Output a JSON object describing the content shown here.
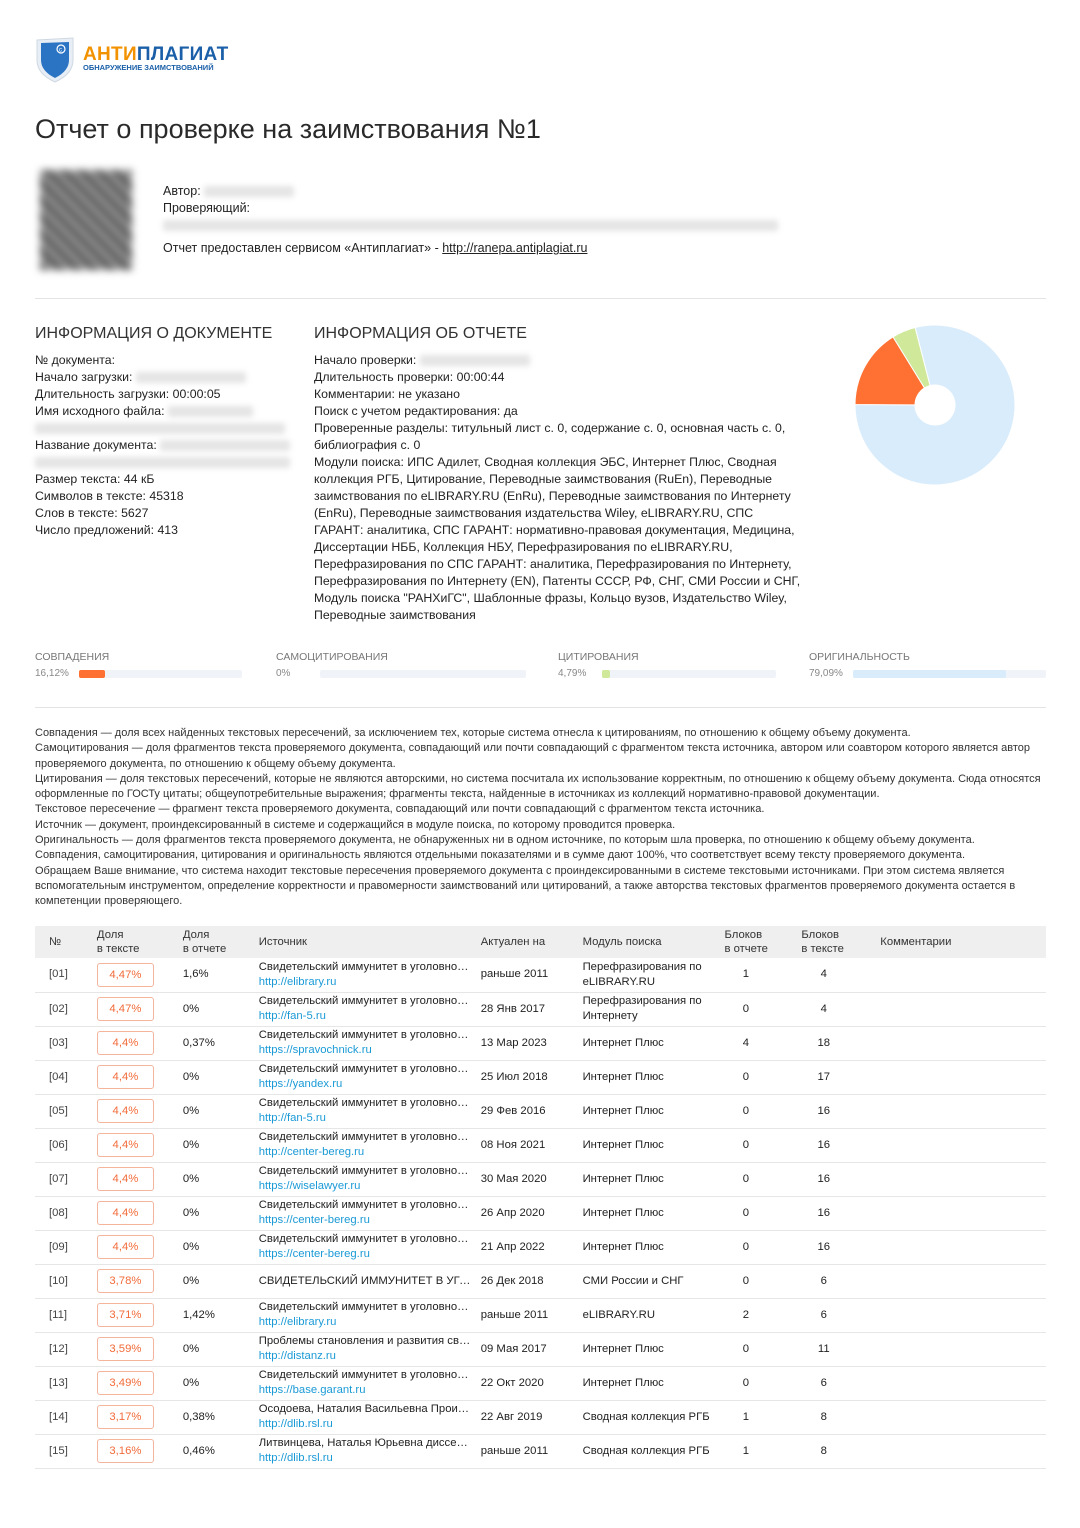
{
  "logo": {
    "word1": "АНТИ",
    "word2": "ПЛАГИАТ",
    "sub": "ОБНАРУЖЕНИЕ ЗАИМСТВОВАНИЙ",
    "colors": {
      "orange": "#f39200",
      "blue": "#1a5fa8"
    }
  },
  "title": "Отчет о проверке на заимствования №1",
  "meta": {
    "author_label": "Автор:",
    "reviewer_label": "Проверяющий:",
    "service_text": "Отчет предоставлен сервисом «Антиплагиат» - ",
    "service_link": "http://ranepa.antiplagiat.ru"
  },
  "doc_info": {
    "title": "ИНФОРМАЦИЯ О ДОКУМЕНТЕ",
    "doc_no": "№ документа:",
    "upload_start": "Начало загрузки:",
    "upload_duration": "Длительность загрузки: 00:00:05",
    "file_name": "Имя исходного файла:",
    "doc_name": "Название документа:",
    "size": "Размер текста: 44 кБ",
    "chars": "Символов в тексте: 45318",
    "words": "Слов в тексте: 5627",
    "sentences": "Число предложений: 413"
  },
  "report_info": {
    "title": "ИНФОРМАЦИЯ ОБ ОТЧЕТЕ",
    "check_start": "Начало проверки:",
    "duration": "Длительность проверки: 00:00:44",
    "comments": "Комментарии: не указано",
    "edit_search": "Поиск с учетом редактирования: да",
    "sections": "Проверенные разделы: титульный лист с. 0, содержание с. 0, основная часть с. 0, библиография с. 0",
    "modules": "Модули поиска: ИПС Адилет, Сводная коллекция ЭБС, Интернет Плюс, Сводная коллекция РГБ, Цитирование, Переводные заимствования (RuEn), Переводные заимствования по eLIBRARY.RU (EnRu), Переводные заимствования по Интернету (EnRu), Переводные заимствования издательства Wiley, eLIBRARY.RU, СПС ГАРАНТ: аналитика, СПС ГАРАНТ: нормативно-правовая документация, Медицина, Диссертации НББ, Коллекция НБУ, Перефразирования по eLIBRARY.RU, Перефразирования по СПС ГАРАНТ: аналитика, Перефразирования по Интернету, Перефразирования по Интернету (EN), Патенты СССР, РФ, СНГ, СМИ России и СНГ, Модуль поиска \"РАНХиГС\", Шаблонные фразы, Кольцо вузов, Издательство Wiley, Переводные заимствования"
  },
  "stats": [
    {
      "label": "СОВПАДЕНИЯ",
      "value": "16,12%",
      "pct": 16.12,
      "color": "#ff7033"
    },
    {
      "label": "САМОЦИТИРОВАНИЯ",
      "value": "0%",
      "pct": 0,
      "color": "#8a5cc4"
    },
    {
      "label": "ЦИТИРОВАНИЯ",
      "value": "4,79%",
      "pct": 4.79,
      "color": "#cfe89a"
    },
    {
      "label": "ОРИГИНАЛЬНОСТЬ",
      "value": "79,09%",
      "pct": 79.09,
      "color": "#d9ecfb"
    }
  ],
  "legend": [
    "Совпадения — доля всех найденных текстовых пересечений, за исключением тех, которые система отнесла к цитированиям, по отношению к общему объему документа.",
    "Самоцитирования — доля фрагментов текста проверяемого документа, совпадающий или почти совпадающий с фрагментом текста источника, автором или соавтором которого является автор проверяемого документа, по отношению к общему объему документа.",
    "Цитирования — доля текстовых пересечений, которые не являются авторскими, но система посчитала их использование корректным, по отношению к общему объему документа. Сюда относятся оформленные по ГОСТу цитаты; общеупотребительные выражения; фрагменты текста, найденные в источниках из коллекций нормативно-правовой документации.",
    "Текстовое пересечение — фрагмент текста проверяемого документа, совпадающий или почти совпадающий с фрагментом текста источника.",
    "Источник — документ, проиндексированный в системе и содержащийся в модуле поиска, по которому проводится проверка.",
    "Оригинальность — доля фрагментов текста проверяемого документа, не обнаруженных ни в одном источнике, по которым шла проверка, по отношению к общему объему документа.",
    "Совпадения, самоцитирования, цитирования и оригинальность являются отдельными показателями и в сумме дают 100%, что соответствует всему тексту проверяемого документа.",
    "Обращаем Ваше внимание, что система находит текстовые пересечения проверяемого документа с проиндексированными в системе текстовыми источниками. При этом система является вспомогательным инструментом, определение корректности и правомерности заимствований или цитирований, а также авторства текстовых фрагментов проверяемого документа остается в компетенции проверяющего."
  ],
  "table": {
    "headers": [
      "№",
      "Доля в тексте",
      "Доля в отчете",
      "Источник",
      "Актуален на",
      "Модуль поиска",
      "Блоков в отчете",
      "Блоков в тексте",
      "Комментарии"
    ],
    "rows": [
      [
        "[01]",
        "4,47%",
        "1,6%",
        "Свидетельский иммунитет в уголовном процессе",
        "http://elibrary.ru",
        "раньше 2011",
        "Перефразирования по eLIBRARY.RU",
        "1",
        "4"
      ],
      [
        "[02]",
        "4,47%",
        "0%",
        "Свидетельский иммунитет в уголовном процессе",
        "http://fan-5.ru",
        "28 Янв 2017",
        "Перефразирования по Интернету",
        "0",
        "4"
      ],
      [
        "[03]",
        "4,4%",
        "0,37%",
        "Свидетельский иммунитет в уголовном процессе",
        "https://spravochnick.ru",
        "13 Мар 2023",
        "Интернет Плюс",
        "4",
        "18"
      ],
      [
        "[04]",
        "4,4%",
        "0%",
        "Свидетельский иммунитет в уголовном процессе",
        "https://yandex.ru",
        "25 Июл 2018",
        "Интернет Плюс",
        "0",
        "17"
      ],
      [
        "[05]",
        "4,4%",
        "0%",
        "Свидетельский иммунитет в уголовном процессе",
        "http://fan-5.ru",
        "29 Фев 2016",
        "Интернет Плюс",
        "0",
        "16"
      ],
      [
        "[06]",
        "4,4%",
        "0%",
        "Свидетельский иммунитет в уголовном процессе",
        "http://center-bereg.ru",
        "08 Ноя 2021",
        "Интернет Плюс",
        "0",
        "16"
      ],
      [
        "[07]",
        "4,4%",
        "0%",
        "Свидетельский иммунитет в уголовном процессе",
        "https://wiselawyer.ru",
        "30 Мая 2020",
        "Интернет Плюс",
        "0",
        "16"
      ],
      [
        "[08]",
        "4,4%",
        "0%",
        "Свидетельский иммунитет в уголовном процессе",
        "https://center-bereg.ru",
        "26 Апр 2020",
        "Интернет Плюс",
        "0",
        "16"
      ],
      [
        "[09]",
        "4,4%",
        "0%",
        "Свидетельский иммунитет в уголовном процессе",
        "https://center-bereg.ru",
        "21 Апр 2022",
        "Интернет Плюс",
        "0",
        "16"
      ],
      [
        "[10]",
        "3,78%",
        "0%",
        "СВИДЕТЕЛЬСКИЙ ИММУНИТЕТ В УГОЛОВНОМ ПРОЦЕССЕ",
        "",
        "26 Дек 2018",
        "СМИ России и СНГ",
        "0",
        "6"
      ],
      [
        "[11]",
        "3,71%",
        "1,42%",
        "Свидетельский иммунитет в уголовном процессе",
        "http://elibrary.ru",
        "раньше 2011",
        "eLIBRARY.RU",
        "2",
        "6"
      ],
      [
        "[12]",
        "3,59%",
        "0%",
        "Проблемы становления и развития свидетельского иммунитета",
        "http://distanz.ru",
        "09 Мая 2017",
        "Интернет Плюс",
        "0",
        "11"
      ],
      [
        "[13]",
        "3,49%",
        "0%",
        "Свидетельский иммунитет в уголовном процессе",
        "https://base.garant.ru",
        "22 Окт 2020",
        "Интернет Плюс",
        "0",
        "6"
      ],
      [
        "[14]",
        "3,17%",
        "0,38%",
        "Осодоева, Наталия Васильевна Производство",
        "http://dlib.rsl.ru",
        "22 Авг 2019",
        "Сводная коллекция РГБ",
        "1",
        "8"
      ],
      [
        "[15]",
        "3,16%",
        "0,46%",
        "Литвинцева, Наталья Юрьевна диссертация",
        "http://dlib.rsl.ru",
        "раньше 2011",
        "Сводная коллекция РГБ",
        "1",
        "8"
      ]
    ]
  }
}
